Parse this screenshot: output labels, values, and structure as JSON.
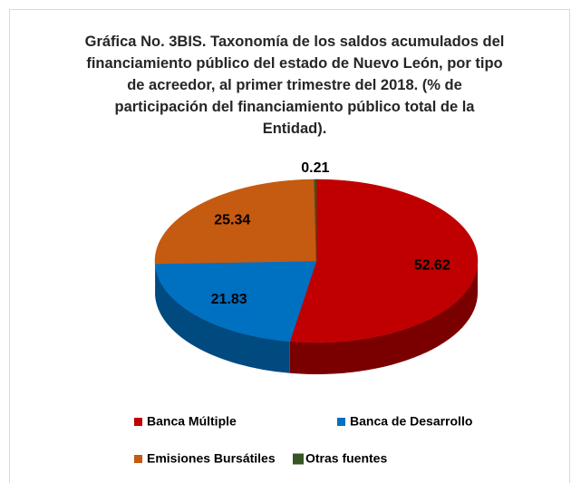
{
  "chart_data": {
    "type": "pie3d",
    "title": "Gráfica No. 3BIS. Taxonomía de los saldos acumulados del financiamiento público del estado de Nuevo León, por tipo de acreedor, al primer trimestre del 2018. (% de participación del financiamiento público total de la Entidad).",
    "categories": [
      "Banca Múltiple",
      "Banca de Desarrollo",
      "Emisiones Bursátiles",
      "Otras fuentes"
    ],
    "values": [
      52.62,
      21.83,
      25.34,
      0.21
    ],
    "colors": [
      "#c00000",
      "#0070c0",
      "#c55a11",
      "#375623"
    ],
    "side_colors": [
      "#7a0000",
      "#004a80",
      "#7f3a0b",
      "#223518"
    ]
  }
}
